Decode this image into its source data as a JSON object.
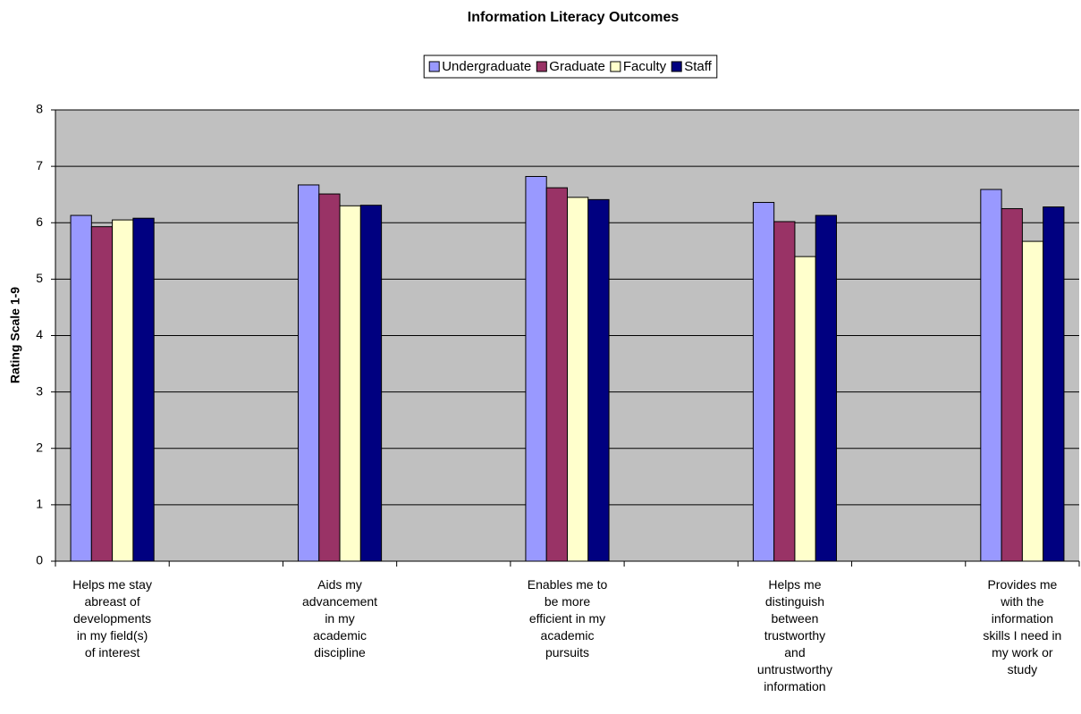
{
  "chart_data": {
    "type": "bar",
    "title": "Information Literacy Outcomes",
    "ylabel": "Rating Scale 1-9",
    "categories": [
      "Helps me stay\nabreast of\ndevelopments\nin my field(s)\nof interest",
      null,
      "Aids my\nadvancement\nin my\nacademic\ndiscipline",
      null,
      "Enables me to\nbe more\nefficient in my\nacademic\npursuits",
      null,
      "Helps me\ndistinguish\nbetween\ntrustworthy\nand\nuntrustworthy\ninformation",
      null,
      "Provides me\nwith the\ninformation\nskills I need in\nmy work or\nstudy"
    ],
    "series": [
      {
        "name": "Undergraduate",
        "color": "#9999ff",
        "values": [
          6.13,
          null,
          6.67,
          null,
          6.82,
          null,
          6.36,
          null,
          6.59
        ]
      },
      {
        "name": "Graduate",
        "color": "#993366",
        "values": [
          5.93,
          null,
          6.51,
          null,
          6.62,
          null,
          6.02,
          null,
          6.25
        ]
      },
      {
        "name": "Faculty",
        "color": "#ffffcc",
        "values": [
          6.05,
          null,
          6.3,
          null,
          6.45,
          null,
          5.4,
          null,
          5.67
        ]
      },
      {
        "name": "Staff",
        "color": "#000080",
        "values": [
          6.08,
          null,
          6.31,
          null,
          6.41,
          null,
          6.13,
          null,
          6.28
        ]
      }
    ],
    "ylim": [
      0,
      8
    ],
    "yticks": [
      0,
      1,
      2,
      3,
      4,
      5,
      6,
      7,
      8
    ],
    "grid": true,
    "legend": "top"
  }
}
